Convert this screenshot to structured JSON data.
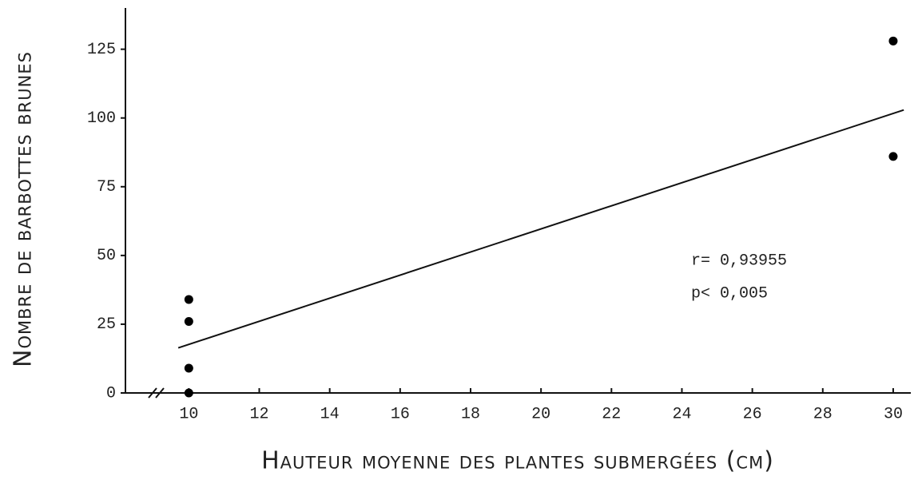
{
  "chart_data": {
    "type": "scatter",
    "xlabel": "Hauteur moyenne des plantes submergées (cm)",
    "ylabel": "Nombre de barbottes brunes",
    "series": [
      {
        "color": "#000000",
        "x": [
          10,
          10,
          10,
          10,
          30,
          30
        ],
        "values": [
          34,
          26,
          9,
          0,
          128,
          86
        ]
      }
    ],
    "fit_line": {
      "x": [
        9.7,
        30.3
      ],
      "y": [
        16.4,
        102.9
      ]
    },
    "annotations": [
      "r= 0,93955",
      "p< 0,005"
    ],
    "xlim": [
      8.2,
      30.5
    ],
    "ylim": [
      0,
      140
    ],
    "xticks": [
      10,
      12,
      14,
      16,
      18,
      20,
      22,
      24,
      26,
      28,
      30
    ],
    "yticks": [
      0,
      25,
      50,
      75,
      100,
      125
    ]
  }
}
